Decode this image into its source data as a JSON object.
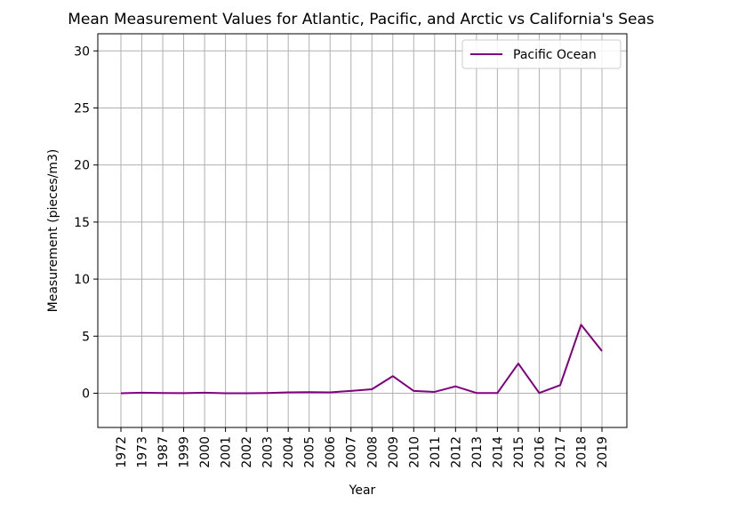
{
  "chart_data": {
    "type": "line",
    "title": "Mean Measurement Values for Atlantic, Pacific, and Arctic vs California's Seas",
    "xlabel": "Year",
    "ylabel": "Measurement (pieces/m3)",
    "categories": [
      "1972",
      "1973",
      "1987",
      "1999",
      "2000",
      "2001",
      "2002",
      "2003",
      "2004",
      "2005",
      "2006",
      "2007",
      "2008",
      "2009",
      "2010",
      "2011",
      "2012",
      "2013",
      "2014",
      "2015",
      "2016",
      "2017",
      "2018",
      "2019"
    ],
    "series": [
      {
        "name": "Pacific Ocean",
        "color": "#800080",
        "values": [
          0.0,
          0.05,
          0.02,
          0.01,
          0.05,
          0.0,
          0.0,
          0.02,
          0.08,
          0.1,
          0.08,
          0.2,
          0.35,
          1.5,
          0.2,
          0.12,
          0.6,
          0.02,
          0.02,
          2.6,
          0.02,
          0.7,
          6.0,
          3.7
        ]
      }
    ],
    "ylim": [
      -3,
      31.5
    ],
    "yticks": [
      0,
      5,
      10,
      15,
      20,
      25,
      30
    ],
    "grid": true,
    "legend_position": "top-right"
  }
}
